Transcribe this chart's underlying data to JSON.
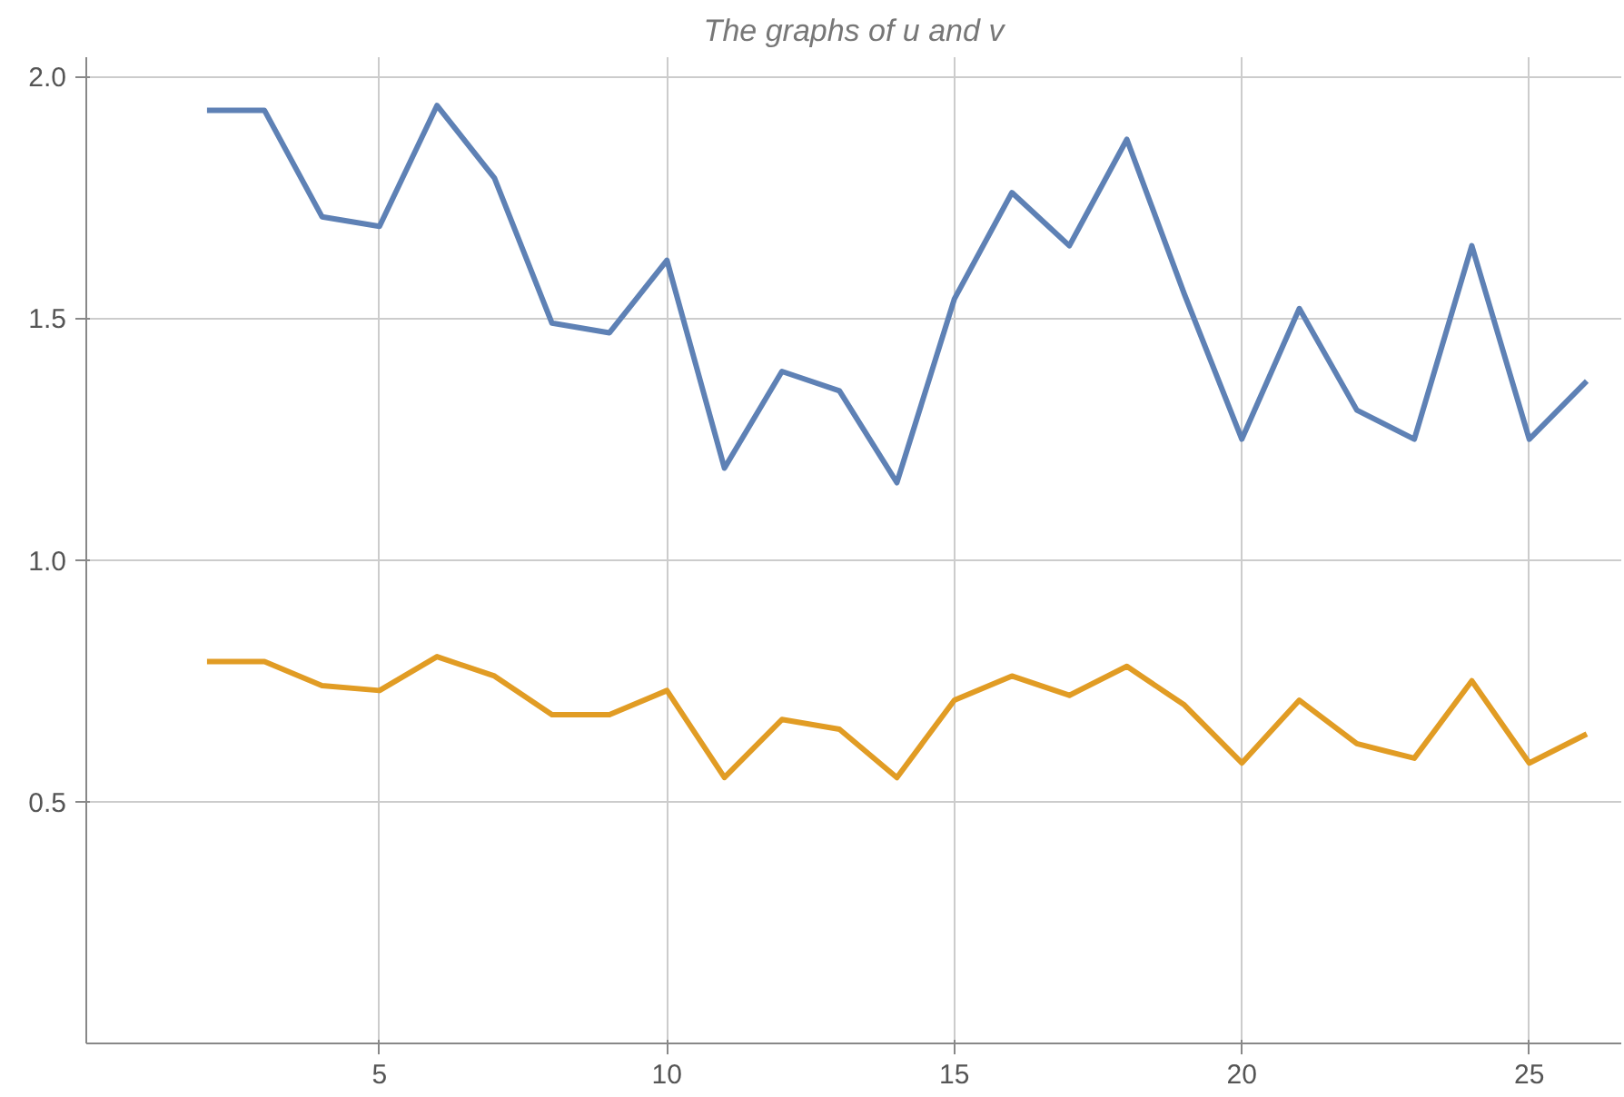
{
  "chart_data": {
    "type": "line",
    "title": "The graphs of u and v",
    "x": [
      2,
      3,
      4,
      5,
      6,
      7,
      8,
      9,
      10,
      11,
      12,
      13,
      14,
      15,
      16,
      17,
      18,
      19,
      20,
      21,
      22,
      23,
      24,
      25,
      26
    ],
    "series": [
      {
        "color": "#5e81b5",
        "values": [
          1.93,
          1.93,
          1.71,
          1.69,
          1.94,
          1.79,
          1.49,
          1.47,
          1.62,
          1.19,
          1.39,
          1.35,
          1.16,
          1.54,
          1.76,
          1.65,
          1.87,
          1.55,
          1.25,
          1.52,
          1.31,
          1.25,
          1.65,
          1.25,
          1.37
        ]
      },
      {
        "color": "#e19c24",
        "values": [
          0.79,
          0.79,
          0.74,
          0.73,
          0.8,
          0.76,
          0.68,
          0.68,
          0.73,
          0.55,
          0.67,
          0.65,
          0.55,
          0.71,
          0.76,
          0.72,
          0.78,
          0.7,
          0.58,
          0.71,
          0.62,
          0.59,
          0.75,
          0.58,
          0.64
        ]
      }
    ],
    "xlim": [
      -0.1,
      26.6
    ],
    "ylim": [
      0,
      2.04
    ],
    "xticks": [
      5,
      10,
      15,
      20,
      25
    ],
    "yticks": [
      {
        "value": 0.5,
        "label": "0.5"
      },
      {
        "value": 1.0,
        "label": "1.0"
      },
      {
        "value": 1.5,
        "label": "1.5"
      },
      {
        "value": 2.0,
        "label": "2.0"
      }
    ],
    "grid": true,
    "line_style": "solid",
    "marker": "none"
  }
}
